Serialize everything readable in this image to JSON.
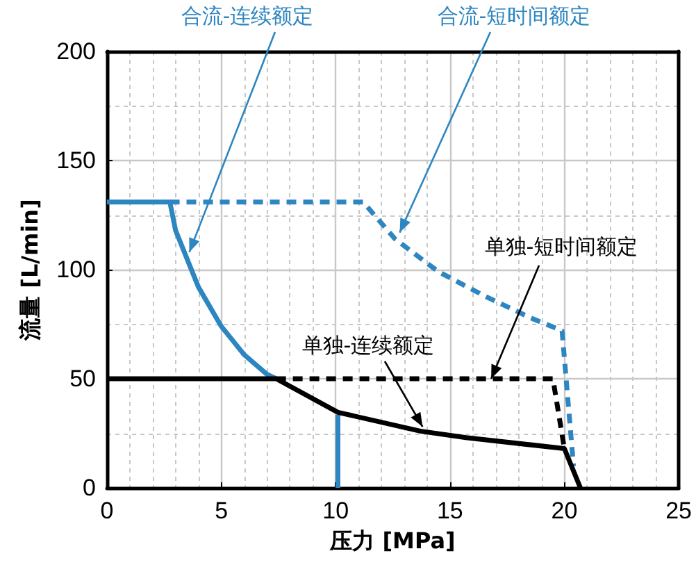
{
  "chart_data": {
    "type": "line",
    "xlabel": "压力 [MPa]",
    "ylabel": "流量 [L/min]",
    "xlim": [
      0,
      25
    ],
    "xticks": [
      0,
      5,
      10,
      15,
      20,
      25
    ],
    "ylim": [
      0,
      200
    ],
    "yticks": [
      0,
      50,
      100,
      150,
      200
    ],
    "grid": true,
    "marker": "none",
    "series": [
      {
        "color": "#2e86c1",
        "line_style": "dashed",
        "x": [
          2.75,
          11.2,
          12.6,
          14.5,
          16.5,
          18.5,
          19.9,
          20.4
        ],
        "values": [
          131,
          131,
          114,
          99,
          88,
          78,
          72,
          10
        ]
      },
      {
        "color": "#000000",
        "line_style": "dashed",
        "x": [
          7.4,
          19.5,
          20
        ],
        "values": [
          50,
          50,
          18
        ]
      },
      {
        "color": "#2e86c1",
        "line_style": "solid",
        "x": [
          0,
          2.75,
          3,
          4,
          5,
          6,
          7,
          7.4,
          8.7,
          10.1,
          10.1
        ],
        "values": [
          131,
          131,
          118,
          92,
          74,
          61,
          52,
          50,
          null,
          33.5,
          0
        ]
      },
      {
        "color": "#000000",
        "line_style": "solid",
        "x": [
          0,
          7.4,
          10.1,
          13.7,
          15.7,
          20,
          20.7
        ],
        "values": [
          50,
          50,
          34.6,
          26,
          23,
          18,
          0
        ]
      }
    ],
    "annotations": [
      {
        "text": "合流-连续额定",
        "x": 3.6,
        "y": 108
      },
      {
        "text": "合流-短时间额定",
        "x": 12.8,
        "y": 117
      },
      {
        "text": "单独-短时间额定",
        "x": 16.8,
        "y": 50
      },
      {
        "text": "单独-连续额定",
        "x": 13.8,
        "y": 28
      }
    ]
  }
}
